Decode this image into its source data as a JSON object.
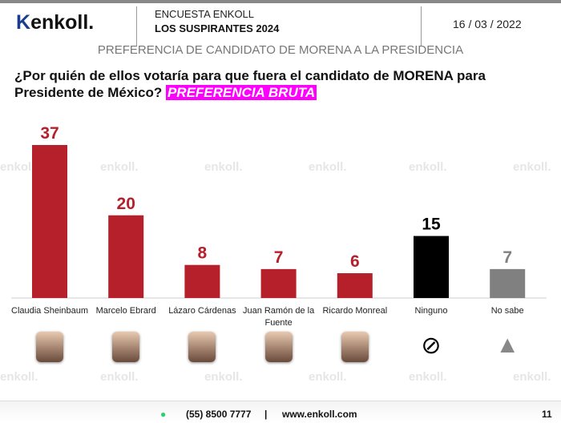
{
  "header": {
    "logo": "enkoll.",
    "survey": "ENCUESTA ENKOLL",
    "series": "LOS SUSPIRANTES 2024",
    "date": "16 / 03 / 2022",
    "subtitle": "PREFERENCIA DE CANDIDATO DE MORENA A LA PRESIDENCIA",
    "question": "¿Por quién de ellos votaría para que fuera el candidato de MORENA para Presidente de México?",
    "highlight": "PREFERENCIA BRUTA"
  },
  "chart_data": {
    "type": "bar",
    "title": "PREFERENCIA DE CANDIDATO DE MORENA A LA PRESIDENCIA",
    "categories": [
      "Claudia Sheinbaum",
      "Marcelo Ebrard",
      "Lázaro Cárdenas",
      "Juan Ramón de la Fuente",
      "Ricardo Monreal",
      "Ninguno",
      "No sabe"
    ],
    "values": [
      37,
      20,
      8,
      7,
      6,
      15,
      7
    ],
    "colors": [
      "#b5202a",
      "#b5202a",
      "#b5202a",
      "#b5202a",
      "#b5202a",
      "#000000",
      "#808080"
    ],
    "ylim": [
      0,
      40
    ],
    "grid": false
  },
  "footer": {
    "phone": "(55) 8500 7777",
    "sep": "|",
    "web": "www.enkoll.com",
    "page": "11"
  },
  "watermark": "enkoll."
}
